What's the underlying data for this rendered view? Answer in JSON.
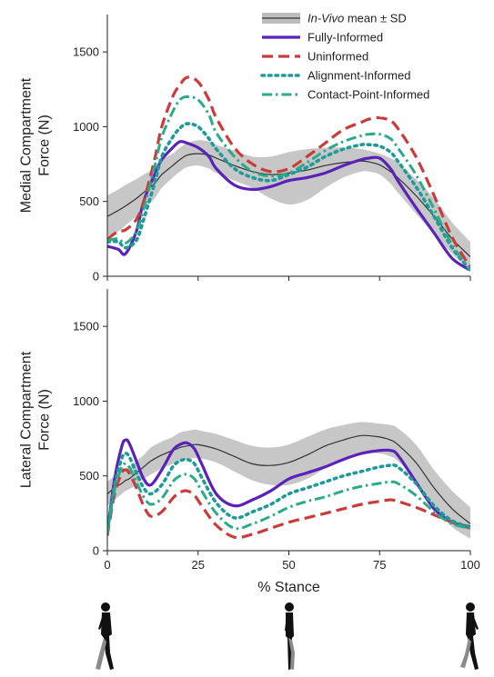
{
  "figure": {
    "x_axis_label": "% Stance",
    "x_ticks": [
      "0",
      "25",
      "50",
      "75",
      "100"
    ],
    "legend": [
      {
        "key": "invivo",
        "label_italic": "In-Vivo",
        "label_rest": " mean ± SD",
        "color": "#444444",
        "style": "band"
      },
      {
        "key": "fully",
        "label": "Fully-Informed",
        "color": "#5a22b8",
        "style": "solid"
      },
      {
        "key": "uninformed",
        "label": "Uninformed",
        "color": "#c83c3c",
        "style": "dash"
      },
      {
        "key": "alignment",
        "label": "Alignment-Informed",
        "color": "#1e9a9a",
        "style": "dot"
      },
      {
        "key": "contact",
        "label": "Contact-Point-Informed",
        "color": "#2aaa88",
        "style": "dashdot"
      }
    ],
    "silhouettes": [
      {
        "name": "heel-strike-silhouette-icon",
        "stance": 0
      },
      {
        "name": "mid-stance-silhouette-icon",
        "stance": 50
      },
      {
        "name": "toe-off-silhouette-icon",
        "stance": 100
      }
    ]
  },
  "chart_data": [
    {
      "type": "line",
      "ylabel_line1": "Medial Compartment",
      "ylabel_line2": "Force (N)",
      "xlim": [
        0,
        100
      ],
      "ylim": [
        0,
        1750
      ],
      "y_ticks": [
        "0",
        "500",
        "1000",
        "1500"
      ],
      "x": [
        0,
        3,
        5,
        8,
        10,
        13,
        15,
        18,
        20,
        22,
        25,
        28,
        30,
        35,
        40,
        45,
        50,
        55,
        60,
        65,
        70,
        72,
        75,
        78,
        80,
        85,
        90,
        95,
        100
      ],
      "band": {
        "name": "In-Vivo mean ± SD",
        "mean": [
          400,
          440,
          470,
          520,
          560,
          620,
          680,
          740,
          780,
          810,
          820,
          810,
          790,
          740,
          700,
          680,
          690,
          710,
          740,
          760,
          770,
          765,
          745,
          700,
          660,
          540,
          400,
          250,
          130
        ],
        "lower": [
          270,
          300,
          340,
          400,
          450,
          520,
          590,
          660,
          700,
          730,
          740,
          720,
          690,
          640,
          590,
          520,
          480,
          510,
          590,
          660,
          700,
          700,
          680,
          620,
          560,
          420,
          280,
          150,
          40
        ],
        "upper": [
          540,
          580,
          610,
          650,
          680,
          720,
          780,
          820,
          860,
          890,
          910,
          900,
          880,
          840,
          800,
          800,
          830,
          850,
          860,
          860,
          850,
          840,
          820,
          790,
          760,
          650,
          520,
          360,
          230
        ]
      },
      "series": [
        {
          "name": "Fully-Informed",
          "values": [
            200,
            180,
            150,
            300,
            500,
            680,
            780,
            860,
            900,
            890,
            860,
            800,
            720,
            610,
            580,
            600,
            640,
            660,
            690,
            740,
            780,
            790,
            790,
            720,
            640,
            460,
            290,
            120,
            40
          ]
        },
        {
          "name": "Uninformed",
          "values": [
            250,
            300,
            310,
            380,
            500,
            780,
            1000,
            1200,
            1280,
            1330,
            1300,
            1180,
            1060,
            860,
            750,
            700,
            720,
            800,
            890,
            980,
            1030,
            1050,
            1060,
            1040,
            990,
            800,
            540,
            260,
            60
          ]
        },
        {
          "name": "Alignment-Informed",
          "values": [
            230,
            230,
            190,
            240,
            380,
            620,
            800,
            930,
            990,
            1020,
            1000,
            920,
            850,
            720,
            660,
            640,
            680,
            730,
            800,
            850,
            880,
            880,
            870,
            830,
            770,
            600,
            400,
            190,
            40
          ]
        },
        {
          "name": "Contact-Point-Informed",
          "values": [
            240,
            250,
            220,
            300,
            450,
            730,
            930,
            1100,
            1180,
            1200,
            1180,
            1080,
            960,
            800,
            700,
            670,
            690,
            760,
            840,
            900,
            940,
            950,
            950,
            920,
            860,
            680,
            450,
            210,
            40
          ]
        }
      ]
    },
    {
      "type": "line",
      "ylabel_line1": "Lateral Compartment",
      "ylabel_line2": "Force (N)",
      "xlim": [
        0,
        100
      ],
      "ylim": [
        0,
        1750
      ],
      "y_ticks": [
        "0",
        "500",
        "1000",
        "1500"
      ],
      "x": [
        0,
        2,
        4,
        5,
        6,
        8,
        10,
        12,
        15,
        18,
        20,
        22,
        24,
        26,
        30,
        35,
        40,
        45,
        50,
        55,
        60,
        65,
        70,
        75,
        78,
        80,
        85,
        90,
        95,
        100
      ],
      "band": {
        "name": "In-Vivo mean ± SD",
        "mean": [
          380,
          420,
          450,
          470,
          480,
          520,
          560,
          600,
          640,
          670,
          690,
          700,
          710,
          705,
          680,
          630,
          580,
          570,
          590,
          640,
          700,
          740,
          770,
          760,
          740,
          710,
          590,
          420,
          280,
          180
        ],
        "lower": [
          300,
          340,
          380,
          400,
          410,
          440,
          480,
          510,
          550,
          580,
          600,
          610,
          620,
          615,
          590,
          530,
          470,
          440,
          440,
          480,
          550,
          610,
          650,
          650,
          630,
          600,
          470,
          300,
          160,
          80
        ],
        "upper": [
          460,
          500,
          530,
          550,
          560,
          600,
          640,
          690,
          730,
          760,
          790,
          800,
          810,
          800,
          780,
          740,
          700,
          690,
          710,
          760,
          810,
          840,
          860,
          850,
          840,
          820,
          710,
          540,
          400,
          290
        ]
      },
      "series": [
        {
          "name": "Fully-Informed",
          "values": [
            120,
            480,
            700,
            740,
            720,
            600,
            480,
            440,
            540,
            670,
            710,
            720,
            680,
            580,
            380,
            300,
            340,
            400,
            480,
            520,
            560,
            610,
            650,
            670,
            670,
            640,
            460,
            280,
            190,
            160
          ]
        },
        {
          "name": "Uninformed",
          "values": [
            100,
            380,
            520,
            540,
            520,
            420,
            300,
            230,
            260,
            350,
            390,
            400,
            370,
            300,
            170,
            90,
            110,
            150,
            190,
            220,
            250,
            280,
            310,
            330,
            340,
            330,
            290,
            240,
            190,
            150
          ]
        },
        {
          "name": "Alignment-Informed",
          "values": [
            130,
            440,
            620,
            650,
            630,
            520,
            420,
            380,
            440,
            560,
            600,
            610,
            580,
            490,
            320,
            220,
            260,
            310,
            380,
            420,
            460,
            500,
            530,
            560,
            570,
            560,
            450,
            300,
            200,
            160
          ]
        },
        {
          "name": "Contact-Point-Informed",
          "values": [
            110,
            410,
            560,
            580,
            560,
            460,
            360,
            310,
            350,
            460,
            500,
            510,
            480,
            400,
            250,
            150,
            180,
            230,
            290,
            330,
            360,
            400,
            430,
            450,
            460,
            450,
            370,
            260,
            180,
            150
          ]
        }
      ]
    }
  ]
}
